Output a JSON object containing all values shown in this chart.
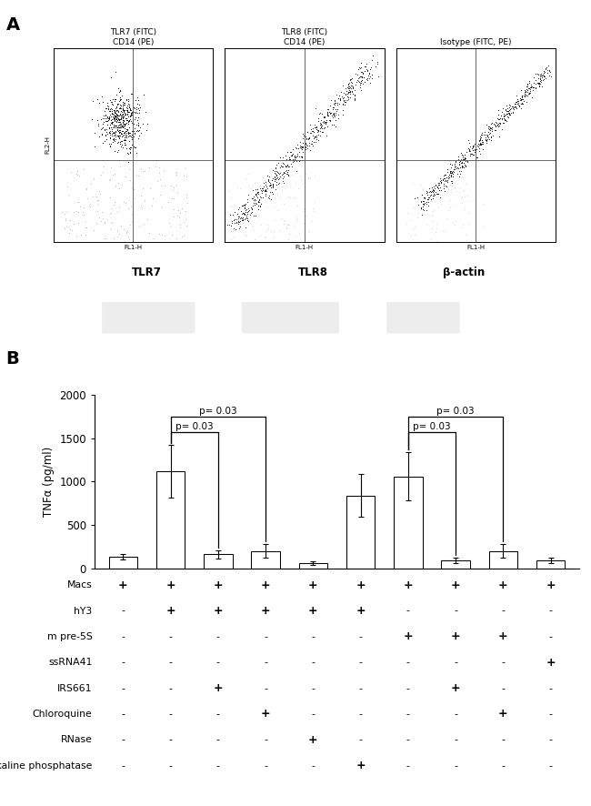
{
  "panel_A_label": "A",
  "panel_B_label": "B",
  "flow_titles": [
    "TLR7 (FITC)\nCD14 (PE)",
    "TLR8 (FITC)\nCD14 (PE)",
    "Isotype (FITC, PE)"
  ],
  "flow_xlabel": "FL1-H",
  "flow_ylabel": "FL2-H",
  "gel_labels": [
    "TLR7",
    "TLR8",
    "β-actin"
  ],
  "bar_values": [
    130,
    1120,
    160,
    200,
    60,
    840,
    1060,
    90,
    200,
    90
  ],
  "bar_errors": [
    30,
    300,
    50,
    80,
    20,
    250,
    280,
    30,
    80,
    30
  ],
  "bar_color": "#ffffff",
  "bar_edgecolor": "#000000",
  "ylabel": "TNFα (pg/ml)",
  "ylim": [
    0,
    2000
  ],
  "yticks": [
    0,
    500,
    1000,
    1500,
    2000
  ],
  "num_bars": 10,
  "row_labels": [
    "Macs",
    "hY3",
    "m pre-5S",
    "ssRNA41",
    "IRS661",
    "Chloroquine",
    "RNase",
    "Alkaline phosphatase"
  ],
  "table_data": [
    [
      "+",
      "+",
      "+",
      "+",
      "+",
      "+",
      "+",
      "+",
      "+",
      "+"
    ],
    [
      "-",
      "+",
      "+",
      "+",
      "+",
      "+",
      "-",
      "-",
      "-",
      "-"
    ],
    [
      "-",
      "-",
      "-",
      "-",
      "-",
      "-",
      "+",
      "+",
      "+",
      "-"
    ],
    [
      "-",
      "-",
      "-",
      "-",
      "-",
      "-",
      "-",
      "-",
      "-",
      "+"
    ],
    [
      "-",
      "-",
      "+",
      "-",
      "-",
      "-",
      "-",
      "+",
      "-",
      "-"
    ],
    [
      "-",
      "-",
      "-",
      "+",
      "-",
      "-",
      "-",
      "-",
      "+",
      "-"
    ],
    [
      "-",
      "-",
      "-",
      "-",
      "+",
      "-",
      "-",
      "-",
      "-",
      "-"
    ],
    [
      "-",
      "-",
      "-",
      "-",
      "-",
      "+",
      "-",
      "-",
      "-",
      "-"
    ]
  ],
  "bg_color": "#ffffff",
  "figure_width": 6.5,
  "figure_height": 8.86
}
